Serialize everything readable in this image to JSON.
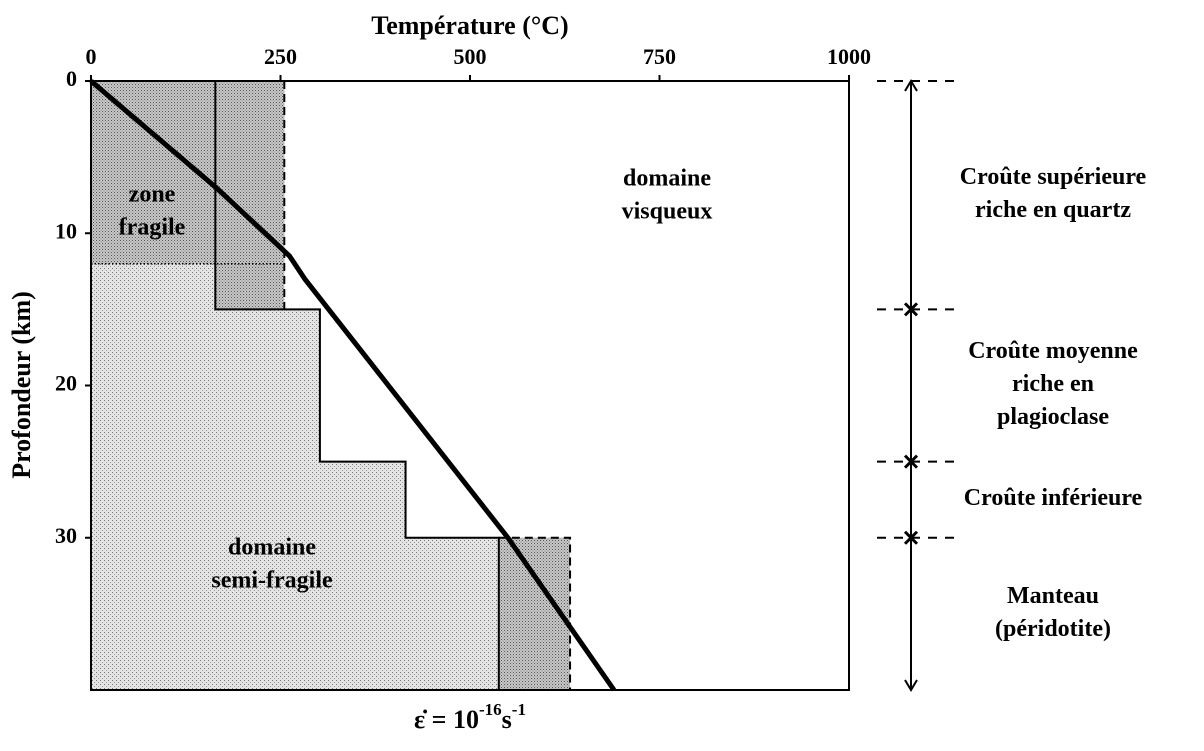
{
  "chart_data": {
    "type": "line",
    "title": "Température (°C)",
    "y_label": "Profondeur (km)",
    "xlim": [
      0,
      1000
    ],
    "ylim": [
      0,
      40
    ],
    "xticks": [
      0,
      250,
      500,
      750,
      1000
    ],
    "yticks": [
      0,
      10,
      20,
      30
    ],
    "y_inverted": true,
    "x_axis_position": "top",
    "series": [
      {
        "color": "#000000",
        "x": [
          0,
          165,
          262,
          282,
          550,
          690
        ],
        "y": [
          0,
          7,
          11.5,
          13,
          30,
          40
        ]
      }
    ],
    "semi_fragile_boundary": {
      "x": [
        0,
        164,
        164,
        302,
        302,
        415,
        415,
        538,
        538,
        0
      ],
      "y": [
        0,
        0,
        15,
        15,
        25,
        25,
        30,
        30,
        40,
        40
      ]
    },
    "dashed_limits": [
      {
        "x": [
          255,
          255
        ],
        "y": [
          0,
          15
        ]
      },
      {
        "x": [
          538,
          632,
          632
        ],
        "y": [
          30,
          30,
          40
        ]
      }
    ],
    "fragile_depth": 12,
    "regions": [
      {
        "lines": [
          "zone",
          "fragile"
        ]
      },
      {
        "lines": [
          "domaine",
          "visqueux"
        ]
      },
      {
        "lines": [
          "domaine",
          "semi-fragile"
        ]
      }
    ],
    "layers": [
      {
        "lines": [
          "Croûte supérieure",
          "riche en quartz"
        ],
        "top": 0,
        "bottom": 15
      },
      {
        "lines": [
          "Croûte moyenne",
          "riche en",
          "plagioclase"
        ],
        "top": 15,
        "bottom": 25
      },
      {
        "lines": [
          "Croûte inférieure"
        ],
        "top": 25,
        "bottom": 30
      },
      {
        "lines": [
          "Manteau",
          "(péridotite)"
        ],
        "top": 30,
        "bottom": 40
      }
    ],
    "strain_rate": {
      "base": "ε̇ = 10",
      "exp1": "-16",
      "unit": "s",
      "exp2": "-1"
    }
  }
}
